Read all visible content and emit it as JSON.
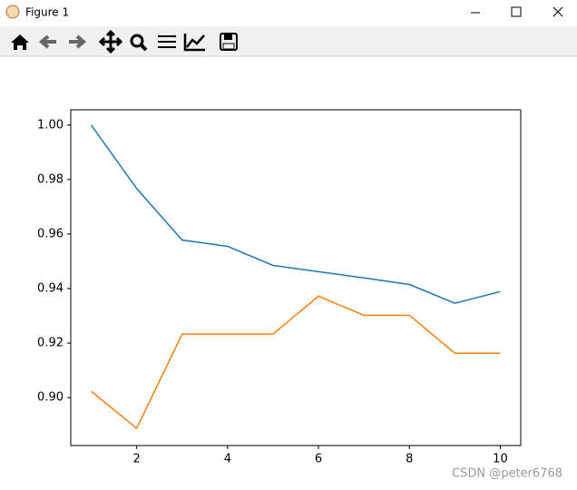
{
  "window": {
    "title": "Figure 1"
  },
  "watermark": "CSDN @peter6768",
  "chart_data": {
    "type": "line",
    "x": [
      1,
      2,
      3,
      4,
      5,
      6,
      7,
      8,
      9,
      10
    ],
    "series": [
      {
        "color": "#1f77b4",
        "values": [
          1.0,
          0.9767,
          0.9578,
          0.9555,
          0.9485,
          0.9462,
          0.9439,
          0.9415,
          0.9346,
          0.9389
        ]
      },
      {
        "color": "#ff7f0e",
        "values": [
          0.9023,
          0.8887,
          0.9233,
          0.9233,
          0.9233,
          0.9372,
          0.9302,
          0.9302,
          0.9163,
          0.9163
        ]
      }
    ],
    "xlim": [
      0.55,
      10.45
    ],
    "xticks": [
      2,
      4,
      6,
      8,
      10
    ],
    "ylim": [
      0.8824,
      1.0056
    ],
    "yticks": [
      {
        "value": 0.9,
        "label": "0.90"
      },
      0.92,
      0.94,
      0.96,
      0.98,
      {
        "value": 1,
        "label": "1.00"
      }
    ],
    "grid": false
  }
}
